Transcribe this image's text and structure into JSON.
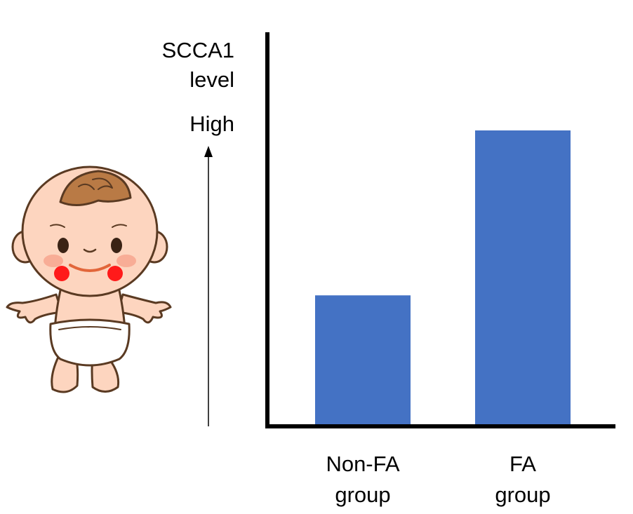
{
  "chart_data": {
    "type": "bar",
    "title": "",
    "ylabel_lines": [
      "SCCA1",
      "level"
    ],
    "y_direction_label": "High",
    "xlabel": "",
    "categories": [
      {
        "lines": [
          "Non-FA",
          "group"
        ]
      },
      {
        "lines": [
          "FA",
          "group"
        ]
      }
    ],
    "values": [
      0.33,
      0.75
    ],
    "ylim": [
      0,
      1
    ],
    "grid": false,
    "legend": "none",
    "bar_color": "#4472C4",
    "axis_color": "#000000"
  },
  "illustration": {
    "subject": "baby-in-diaper"
  }
}
